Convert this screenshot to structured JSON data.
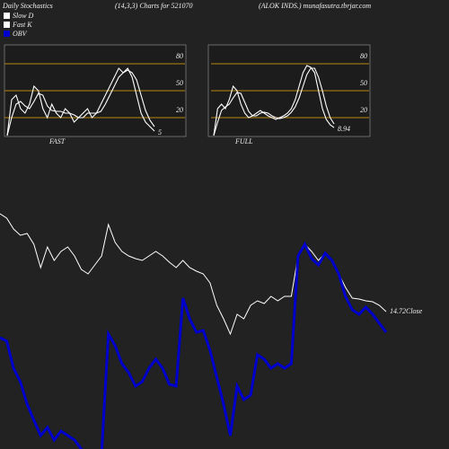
{
  "chart_data": [
    {
      "type": "stochastic",
      "title": "Daily Stochastics",
      "subtitle": "(14,3,3) Charts for 521070",
      "source": "(ALOK INDS.) munafasutra.tbrjar.com",
      "panel_label": "FAST",
      "ylim": [
        0,
        100
      ],
      "yticks": [
        20,
        50,
        80
      ],
      "grid_color": "#b8860b",
      "series": [
        {
          "name": "Slow D",
          "color": "#ffffff",
          "values": [
            0,
            20,
            35,
            38,
            33,
            30,
            38,
            47,
            45,
            33,
            28,
            27,
            27,
            25,
            25,
            23,
            20,
            20,
            25,
            25,
            25,
            27,
            35,
            45,
            55,
            65,
            70,
            73,
            70,
            62,
            45,
            28,
            17,
            10
          ]
        },
        {
          "name": "Fast K",
          "color": "#ffffff",
          "values": [
            0,
            40,
            45,
            30,
            25,
            35,
            55,
            50,
            30,
            20,
            35,
            25,
            20,
            30,
            25,
            15,
            20,
            25,
            30,
            20,
            25,
            35,
            45,
            55,
            65,
            75,
            70,
            75,
            65,
            45,
            25,
            15,
            10,
            5
          ]
        }
      ]
    },
    {
      "type": "stochastic",
      "panel_label": "FULL",
      "ylim": [
        0,
        100
      ],
      "yticks": [
        20,
        50,
        80
      ],
      "grid_color": "#b8860b",
      "series": [
        {
          "color": "#ffffff",
          "values": [
            0,
            15,
            28,
            32,
            35,
            42,
            48,
            47,
            37,
            27,
            22,
            22,
            25,
            26,
            25,
            22,
            20,
            19,
            20,
            22,
            26,
            32,
            42,
            55,
            68,
            75,
            75,
            65,
            50,
            33,
            20,
            13
          ]
        },
        {
          "color": "#ffffff",
          "values": [
            0,
            30,
            35,
            30,
            40,
            55,
            50,
            35,
            25,
            20,
            22,
            25,
            28,
            25,
            22,
            20,
            18,
            20,
            22,
            25,
            30,
            40,
            55,
            70,
            78,
            76,
            70,
            50,
            30,
            18,
            12,
            8.94
          ]
        }
      ]
    },
    {
      "type": "line",
      "close_label": "Close",
      "series": [
        {
          "color": "#ffffff",
          "values": [
            25.62,
            25.12,
            23.92,
            23.22,
            23.42,
            22.22,
            19.62,
            21.92,
            20.42,
            21.42,
            21.92,
            20.92,
            19.42,
            18.92,
            19.92,
            20.92,
            24.42,
            22.42,
            21.42,
            20.92,
            20.62,
            20.42,
            20.92,
            21.42,
            20.92,
            20.22,
            19.62,
            20.42,
            19.62,
            19.22,
            18.92,
            17.92,
            15.42,
            13.92,
            12.22,
            14.42,
            13.92,
            15.42,
            15.92,
            15.62,
            16.42,
            15.92,
            16.42,
            16.42,
            20.92,
            22.22,
            21.42,
            20.42,
            21.22,
            20.42,
            18.92,
            17.42,
            16.22,
            16.12,
            15.92,
            15.82,
            15.42,
            14.72
          ]
        },
        {
          "name": "OBV",
          "color": "#0000cc",
          "values": [
            124000,
            120000,
            90000,
            75000,
            50000,
            32000,
            15000,
            24000,
            10000,
            20000,
            15000,
            10000,
            0,
            -10000,
            -10000,
            -5000,
            128000,
            115000,
            95000,
            85000,
            70000,
            75000,
            90000,
            100000,
            90000,
            72000,
            70000,
            168000,
            145000,
            130000,
            132000,
            110000,
            80000,
            50000,
            15000,
            70000,
            55000,
            60000,
            105000,
            100000,
            90000,
            95000,
            90000,
            95000,
            215000,
            228000,
            212000,
            205000,
            218000,
            210000,
            195000,
            170000,
            155000,
            150000,
            158000,
            150000,
            140000,
            130000
          ]
        }
      ]
    }
  ]
}
